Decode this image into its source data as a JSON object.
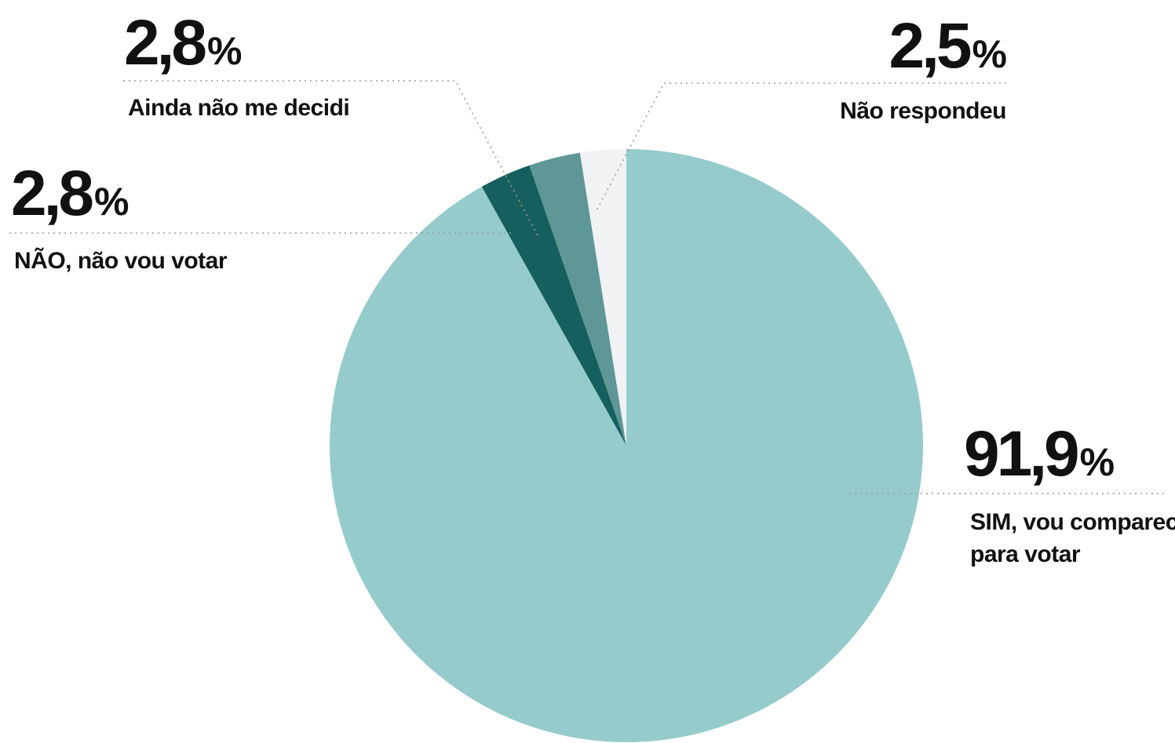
{
  "chart_data": {
    "type": "pie",
    "slices": [
      {
        "label": "SIM, vou comparecer para votar",
        "label_lines": [
          "SIM, vou comparecer",
          "para votar"
        ],
        "value": 91.9,
        "value_text": "91,9",
        "unit": "%",
        "color": "#96cbcc"
      },
      {
        "label": "NÃO, não vou votar",
        "label_lines": [
          "NÃO, não vou votar"
        ],
        "value": 2.8,
        "value_text": "2,8",
        "unit": "%",
        "color": "#155f5e"
      },
      {
        "label": "Ainda não me decidi",
        "label_lines": [
          "Ainda não me decidi"
        ],
        "value": 2.8,
        "value_text": "2,8",
        "unit": "%",
        "color": "#5e9795"
      },
      {
        "label": "Não respondeu",
        "label_lines": [
          "Não respondeu"
        ],
        "value": 2.5,
        "value_text": "2,5",
        "unit": "%",
        "color": "#f1f2f4"
      }
    ],
    "start_angle_deg": 0,
    "direction": "clockwise",
    "legend": "none"
  }
}
